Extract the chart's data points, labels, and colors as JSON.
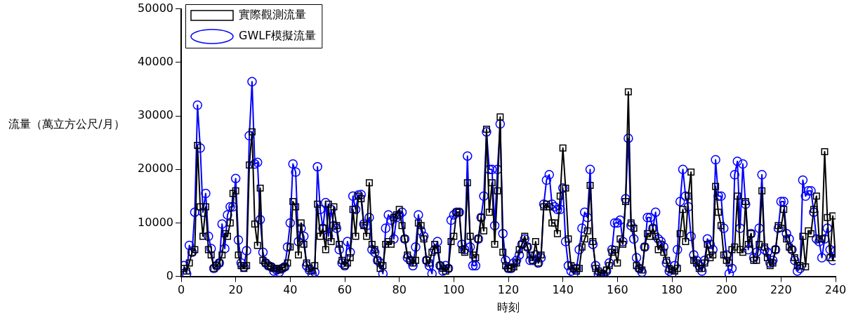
{
  "chart_data": {
    "type": "line",
    "xlabel": "時刻",
    "ylabel": "流量（萬立方公尺/月）",
    "xlim": [
      0,
      240
    ],
    "xticks": [
      0,
      20,
      40,
      60,
      80,
      100,
      120,
      140,
      160,
      180,
      200,
      220,
      240
    ],
    "ylim": [
      0,
      50000
    ],
    "yticks": [
      0,
      10000,
      20000,
      30000,
      40000,
      50000
    ],
    "legend": "top left",
    "grid": false,
    "x": [
      1,
      2,
      3,
      4,
      5,
      6,
      7,
      8,
      9,
      10,
      11,
      12,
      13,
      14,
      15,
      16,
      17,
      18,
      19,
      20,
      21,
      22,
      23,
      24,
      25,
      26,
      27,
      28,
      29,
      30,
      31,
      32,
      33,
      34,
      35,
      36,
      37,
      38,
      39,
      40,
      41,
      42,
      43,
      44,
      45,
      46,
      47,
      48,
      49,
      50,
      51,
      52,
      53,
      54,
      55,
      56,
      57,
      58,
      59,
      60,
      61,
      62,
      63,
      64,
      65,
      66,
      67,
      68,
      69,
      70,
      71,
      72,
      73,
      74,
      75,
      76,
      77,
      78,
      79,
      80,
      81,
      82,
      83,
      84,
      85,
      86,
      87,
      88,
      89,
      90,
      91,
      92,
      93,
      94,
      95,
      96,
      97,
      98,
      99,
      100,
      101,
      102,
      103,
      104,
      105,
      106,
      107,
      108,
      109,
      110,
      111,
      112,
      113,
      114,
      115,
      116,
      117,
      118,
      119,
      120,
      121,
      122,
      123,
      124,
      125,
      126,
      127,
      128,
      129,
      130,
      131,
      132,
      133,
      134,
      135,
      136,
      137,
      138,
      139,
      140,
      141,
      142,
      143,
      144,
      145,
      146,
      147,
      148,
      149,
      150,
      151,
      152,
      153,
      154,
      155,
      156,
      157,
      158,
      159,
      160,
      161,
      162,
      163,
      164,
      165,
      166,
      167,
      168,
      169,
      170,
      171,
      172,
      173,
      174,
      175,
      176,
      177,
      178,
      179,
      180,
      181,
      182,
      183,
      184,
      185,
      186,
      187,
      188,
      189,
      190,
      191,
      192,
      193,
      194,
      195,
      196,
      197,
      198,
      199,
      200,
      201,
      202,
      203,
      204,
      205,
      206,
      207,
      208,
      209,
      210,
      211,
      212,
      213,
      214,
      215,
      216,
      217,
      218,
      219,
      220,
      221,
      222,
      223,
      224,
      225,
      226,
      227,
      228,
      229,
      230,
      231,
      232,
      233,
      234,
      235,
      236,
      237,
      238,
      239,
      240
    ],
    "series": [
      {
        "name": "實際觀測流量",
        "color": "#000000",
        "marker": "square",
        "values": [
          1500,
          1000,
          2500,
          4500,
          5000,
          24500,
          13000,
          7500,
          13000,
          5000,
          4000,
          1500,
          2000,
          2500,
          4000,
          8000,
          7500,
          10000,
          15500,
          16000,
          4000,
          2000,
          1500,
          2000,
          20800,
          27000,
          9800,
          5800,
          16500,
          3000,
          2500,
          2000,
          1800,
          1500,
          1500,
          1200,
          1500,
          1800,
          2500,
          5500,
          14000,
          13000,
          4000,
          10000,
          6000,
          2500,
          1500,
          1000,
          2000,
          13500,
          7500,
          9000,
          5000,
          13500,
          6500,
          13000,
          9500,
          6000,
          3000,
          2000,
          2500,
          3500,
          12500,
          7500,
          15000,
          14500,
          9500,
          7500,
          17500,
          6000,
          5000,
          3000,
          1500,
          2000,
          6000,
          6500,
          6000,
          11000,
          11500,
          12500,
          9500,
          7000,
          4000,
          3000,
          2500,
          3000,
          10000,
          9500,
          7000,
          3000,
          2500,
          4500,
          6000,
          5000,
          2000,
          1500,
          1000,
          1500,
          6500,
          7500,
          12000,
          12000,
          5000,
          4500,
          17500,
          7500,
          4000,
          3500,
          7000,
          11000,
          8500,
          27500,
          12000,
          17500,
          6000,
          16000,
          29800,
          4500,
          2000,
          1500,
          1500,
          1800,
          2500,
          5000,
          6000,
          7500,
          5500,
          4000,
          3000,
          6500,
          2500,
          4000,
          13000,
          13500,
          13000,
          10000,
          10000,
          8000,
          15000,
          24000,
          16500,
          7000,
          2000,
          1500,
          1000,
          1500,
          5500,
          7000,
          8500,
          17000,
          6500,
          1500,
          1000,
          600,
          500,
          1200,
          2000,
          4500,
          5000,
          2500,
          7000,
          6000,
          14000,
          34500,
          10000,
          9000,
          2000,
          1500,
          1200,
          5500,
          8000,
          7500,
          9000,
          7500,
          5000,
          6000,
          4500,
          3000,
          1500,
          1200,
          1000,
          1500,
          8000,
          12500,
          6500,
          15000,
          19500,
          3000,
          2500,
          1500,
          1500,
          2500,
          6000,
          3500,
          4000,
          16800,
          12000,
          9500,
          4000,
          3000,
          2500,
          5000,
          5500,
          15000,
          5000,
          4500,
          14000,
          6000,
          8000,
          3000,
          3000,
          6000,
          16000,
          5500,
          3500,
          2000,
          2500,
          5000,
          9500,
          9000,
          12500,
          7000,
          5500,
          5000,
          3500,
          2000,
          2000,
          7500,
          1800,
          8500,
          8000,
          12500,
          15000,
          7000,
          7000,
          23300,
          11000,
          3500,
          11300,
          3500
        ]
      },
      {
        "name": "GWLF模擬流量",
        "color": "#0000ff",
        "marker": "circle",
        "values": [
          2000,
          500,
          5800,
          4500,
          12000,
          32000,
          24000,
          12000,
          15500,
          7500,
          5200,
          1500,
          2000,
          2500,
          9800,
          5200,
          11500,
          13000,
          13000,
          18300,
          6800,
          2500,
          1800,
          4800,
          26300,
          36400,
          21000,
          21300,
          10600,
          4500,
          2500,
          2000,
          1800,
          1000,
          1200,
          800,
          1500,
          1800,
          5500,
          10000,
          21000,
          19500,
          6500,
          9000,
          7500,
          2000,
          1200,
          500,
          800,
          20500,
          12500,
          9000,
          13800,
          7500,
          12500,
          9500,
          9000,
          5000,
          2500,
          2000,
          6500,
          4500,
          15000,
          12500,
          15200,
          15300,
          9800,
          9500,
          11000,
          5000,
          4500,
          3000,
          2500,
          500,
          9000,
          11500,
          10500,
          7000,
          11000,
          11500,
          12000,
          7000,
          3500,
          3000,
          2000,
          5500,
          11500,
          8500,
          7500,
          3000,
          2000,
          500,
          5000,
          6500,
          2000,
          1000,
          2000,
          1500,
          10500,
          11500,
          12000,
          12000,
          6000,
          5000,
          22500,
          5500,
          2000,
          2000,
          7000,
          11000,
          15000,
          27000,
          20000,
          20000,
          9500,
          20000,
          28500,
          8000,
          3000,
          1500,
          1500,
          2500,
          3000,
          4000,
          6000,
          7000,
          5500,
          3000,
          3000,
          4000,
          2500,
          3500,
          13500,
          18000,
          19000,
          13500,
          13000,
          12500,
          12500,
          16500,
          6500,
          2000,
          1000,
          500,
          1500,
          5000,
          9000,
          12000,
          11000,
          20000,
          6000,
          2000,
          500,
          0,
          100,
          1000,
          2500,
          5000,
          10000,
          10000,
          10500,
          6500,
          14500,
          25800,
          9500,
          7000,
          3500,
          1500,
          800,
          5500,
          11000,
          11000,
          9000,
          12000,
          7000,
          6500,
          5500,
          2500,
          1000,
          500,
          2000,
          5000,
          14000,
          20000,
          15000,
          13000,
          7500,
          4000,
          3000,
          2000,
          1000,
          3000,
          7000,
          6000,
          5000,
          21800,
          15000,
          15000,
          9000,
          4000,
          500,
          1500,
          19000,
          21500,
          9000,
          21000,
          13500,
          5000,
          8000,
          3500,
          4500,
          9000,
          19000,
          5000,
          4500,
          2500,
          3000,
          5000,
          9000,
          14000,
          14000,
          8000,
          7000,
          5000,
          3000,
          1000,
          1500,
          18000,
          15000,
          16000,
          16000,
          12000,
          7000,
          6500,
          3500,
          7000,
          9000,
          5000,
          3000,
          4800
        ]
      }
    ]
  }
}
